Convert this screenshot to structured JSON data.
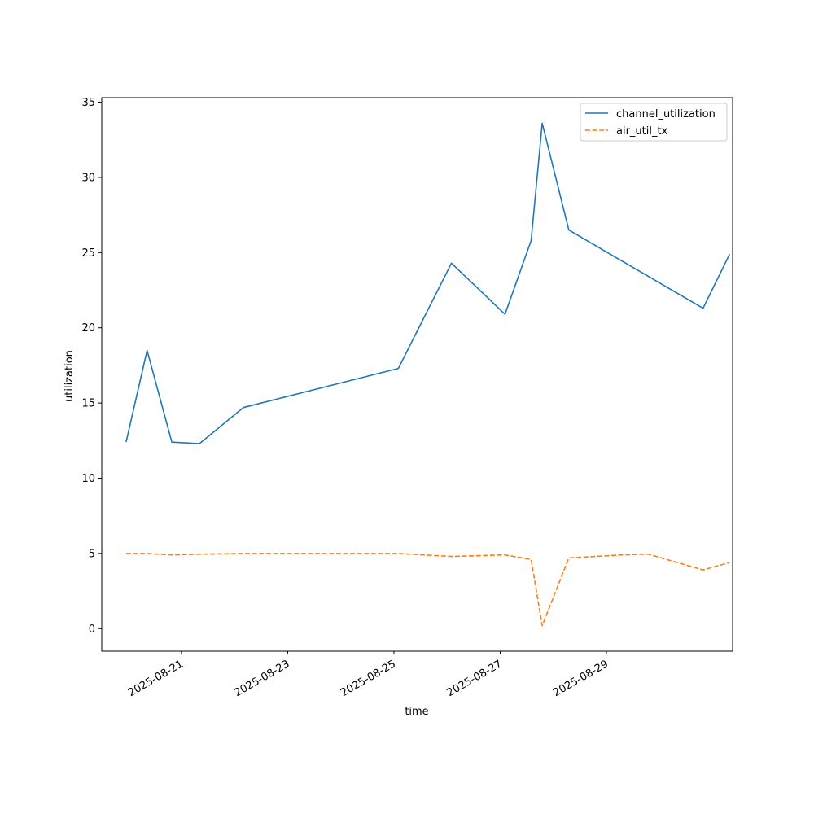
{
  "chart_data": {
    "type": "line",
    "xlabel": "time",
    "ylabel": "utilization",
    "x_ticks": [
      "2025-08-21",
      "2025-08-23",
      "2025-08-25",
      "2025-08-27",
      "2025-08-29"
    ],
    "y_ticks": [
      0,
      5,
      10,
      15,
      20,
      25,
      30,
      35
    ],
    "xlim": [
      "2025-08-19 12:00",
      "2025-08-31 09:00"
    ],
    "ylim": [
      -1.5,
      35.3
    ],
    "grid": false,
    "legend_position": "top-right",
    "series": [
      {
        "name": "channel_utilization",
        "color": "#1f77b4",
        "style": "solid",
        "points": [
          {
            "x": "2025-08-19 23:00",
            "y": 12.4
          },
          {
            "x": "2025-08-20 08:30",
            "y": 18.5
          },
          {
            "x": "2025-08-20 19:40",
            "y": 12.4
          },
          {
            "x": "2025-08-21 08:10",
            "y": 12.3
          },
          {
            "x": "2025-08-22 04:00",
            "y": 14.7
          },
          {
            "x": "2025-08-25 02:00",
            "y": 17.3
          },
          {
            "x": "2025-08-26 02:00",
            "y": 24.3
          },
          {
            "x": "2025-08-27 02:10",
            "y": 20.9
          },
          {
            "x": "2025-08-27 14:00",
            "y": 25.8
          },
          {
            "x": "2025-08-27 19:00",
            "y": 33.6
          },
          {
            "x": "2025-08-28 07:00",
            "y": 26.5
          },
          {
            "x": "2025-08-30 19:40",
            "y": 21.3
          },
          {
            "x": "2025-08-31 07:40",
            "y": 24.9
          }
        ]
      },
      {
        "name": "air_util_tx",
        "color": "#ff7f0e",
        "style": "dashed",
        "points": [
          {
            "x": "2025-08-19 23:00",
            "y": 5.0
          },
          {
            "x": "2025-08-20 08:30",
            "y": 5.0
          },
          {
            "x": "2025-08-20 19:40",
            "y": 4.9
          },
          {
            "x": "2025-08-21 08:10",
            "y": 4.95
          },
          {
            "x": "2025-08-22 04:00",
            "y": 5.0
          },
          {
            "x": "2025-08-25 02:00",
            "y": 5.0
          },
          {
            "x": "2025-08-26 02:00",
            "y": 4.8
          },
          {
            "x": "2025-08-27 02:10",
            "y": 4.9
          },
          {
            "x": "2025-08-27 14:00",
            "y": 4.6
          },
          {
            "x": "2025-08-27 19:00",
            "y": 0.2
          },
          {
            "x": "2025-08-28 07:00",
            "y": 4.7
          },
          {
            "x": "2025-08-29 07:00",
            "y": 4.9
          },
          {
            "x": "2025-08-29 19:00",
            "y": 4.95
          },
          {
            "x": "2025-08-30 19:40",
            "y": 3.9
          },
          {
            "x": "2025-08-31 07:40",
            "y": 4.4
          }
        ]
      }
    ]
  }
}
